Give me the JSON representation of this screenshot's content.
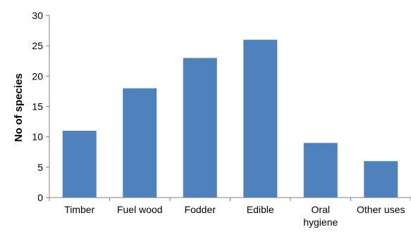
{
  "chart_data": {
    "type": "bar",
    "title": "",
    "xlabel": "",
    "ylabel": "No of species",
    "categories": [
      "Timber",
      "Fuel wood",
      "Fodder",
      "Edible",
      "Oral hygiene",
      "Other uses"
    ],
    "values": [
      11,
      18,
      23,
      26,
      9,
      6
    ],
    "ylim": [
      0,
      30
    ],
    "yticks": [
      0,
      5,
      10,
      15,
      20,
      25,
      30
    ],
    "grid": false,
    "legend": "none",
    "bar_color": "#4F81BD",
    "axis_color": "#7F7F7F"
  }
}
